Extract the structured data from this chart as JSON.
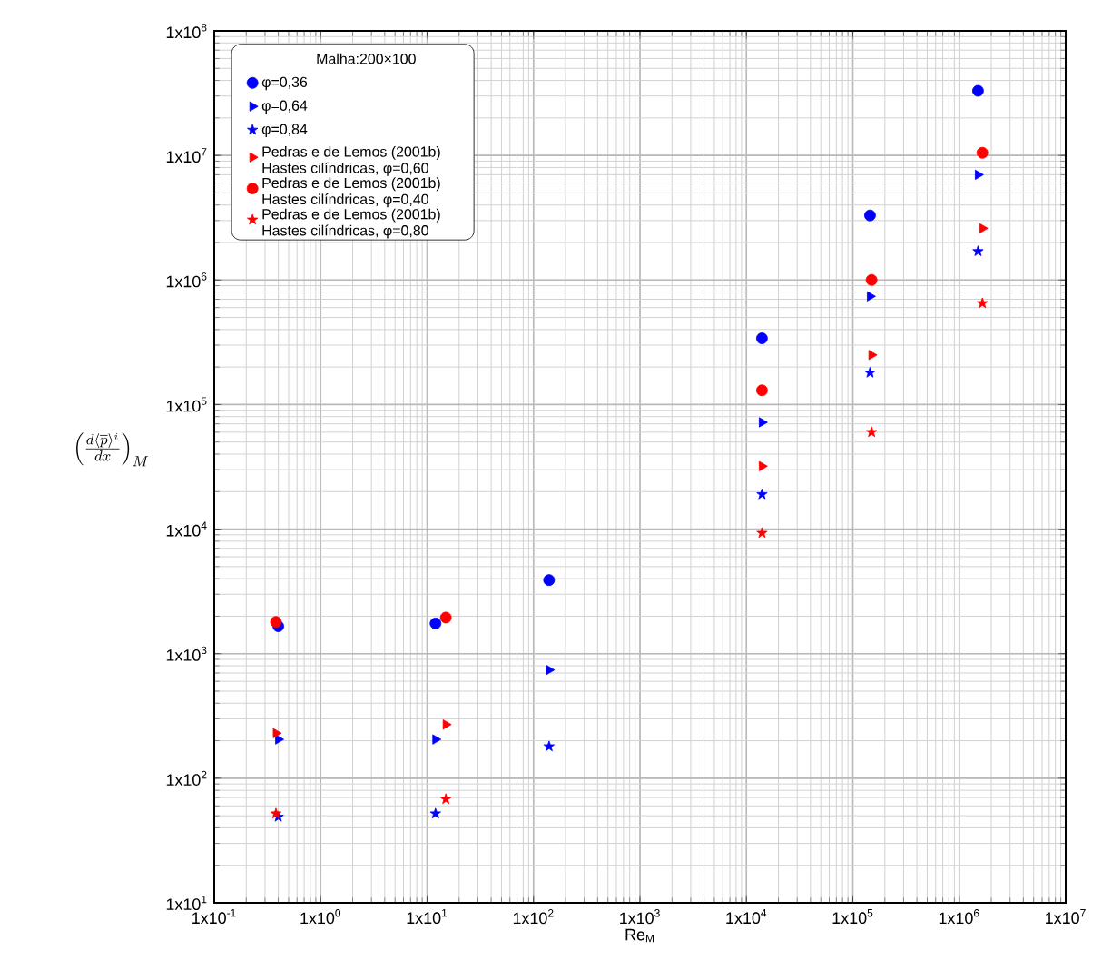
{
  "chart_data": {
    "type": "scatter",
    "xlabel": "Re$_{M}$",
    "ylabel": "\\left(\\frac{d\\langle\\overline{p}\\rangle^{i}}{dx}\\right)_{M}",
    "legend_title": "Malha:200×100",
    "log": "xy",
    "grid": true,
    "legend": "top left",
    "xlim": [
      0.1,
      10000000
    ],
    "ylim": [
      10,
      100000000
    ],
    "xticks": [
      {
        "value": 0.1,
        "label": "1x10$^{-1}$"
      },
      {
        "value": 1,
        "label": "1x10$^{0}$"
      },
      {
        "value": 10,
        "label": "1x10$^{1}$"
      },
      {
        "value": 100,
        "label": "1x10$^{2}$"
      },
      {
        "value": 1000,
        "label": "1x10$^{3}$"
      },
      {
        "value": 10000,
        "label": "1x10$^{4}$"
      },
      {
        "value": 100000,
        "label": "1x10$^{5}$"
      },
      {
        "value": 1000000,
        "label": "1x10$^{6}$"
      },
      {
        "value": 10000000,
        "label": "1x10$^{7}$"
      }
    ],
    "yticks": [
      {
        "value": 10,
        "label": "1x10$^{1}$"
      },
      {
        "value": 100,
        "label": "1x10$^{2}$"
      },
      {
        "value": 1000,
        "label": "1x10$^{3}$"
      },
      {
        "value": 10000,
        "label": "1x10$^{4}$"
      },
      {
        "value": 100000,
        "label": "1x10$^{5}$"
      },
      {
        "value": 1000000,
        "label": "1x10$^{6}$"
      },
      {
        "value": 10000000,
        "label": "1x10$^{7}$"
      },
      {
        "value": 100000000,
        "label": "1x10$^{8}$"
      }
    ],
    "series": [
      {
        "name": "φ=0,36",
        "color": "#0000ff",
        "marker": "circle",
        "x": [
          0.4,
          12,
          140,
          14000,
          145000,
          1500000
        ],
        "values": [
          1660,
          1750,
          3900,
          340000,
          3300000,
          33000000
        ]
      },
      {
        "name": "φ=0,64",
        "color": "#0000ff",
        "marker": "triangle",
        "x": [
          0.4,
          12,
          140,
          14000,
          145000,
          1500000
        ],
        "values": [
          205,
          205,
          740,
          72000,
          740000,
          7000000
        ]
      },
      {
        "name": "φ=0,84",
        "color": "#0000ff",
        "marker": "star",
        "x": [
          0.4,
          12,
          140,
          14000,
          145000,
          1500000
        ],
        "values": [
          49,
          52,
          180,
          19000,
          180000,
          1700000
        ]
      },
      {
        "name": "Pedras e de Lemos (2001b) Hastes cilíndricas, φ=0,60",
        "color": "#ff0000",
        "marker": "triangle",
        "x": [
          0.38,
          15,
          14000,
          150000,
          1650000
        ],
        "values": [
          230,
          270,
          32000,
          250000,
          2600000
        ]
      },
      {
        "name": "Pedras e de Lemos (2001b) Hastes cilíndricas, φ=0,40",
        "color": "#ff0000",
        "marker": "circle",
        "x": [
          0.38,
          15,
          14000,
          150000,
          1650000
        ],
        "values": [
          1800,
          1950,
          130000,
          1000000,
          10500000
        ]
      },
      {
        "name": "Pedras e de Lemos (2001b) Hastes cilíndricas, φ=0,80",
        "color": "#ff0000",
        "marker": "star",
        "x": [
          0.38,
          15,
          14000,
          150000,
          1650000
        ],
        "values": [
          52,
          68,
          9300,
          60000,
          650000
        ]
      }
    ]
  }
}
